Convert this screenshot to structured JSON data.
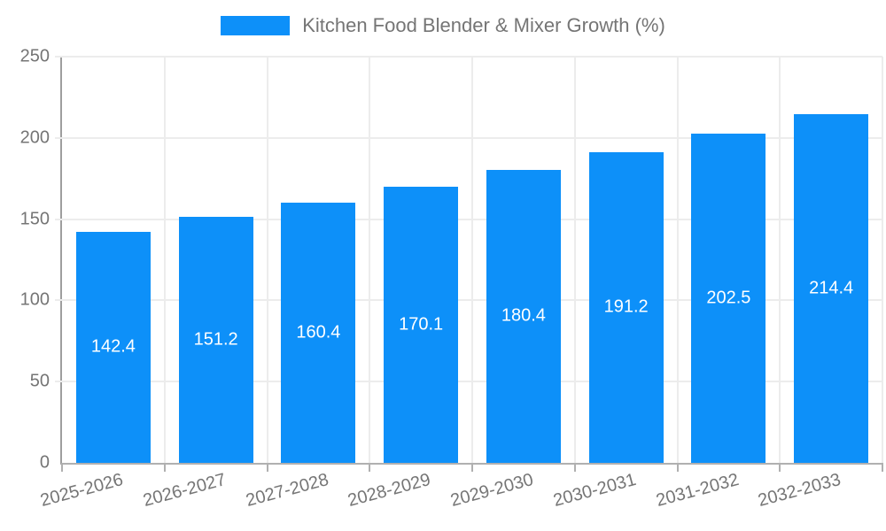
{
  "chart_data": {
    "type": "bar",
    "title": "Kitchen Food Blender & Mixer Growth (%)",
    "legend": {
      "position": "top",
      "entries": [
        "Kitchen Food Blender & Mixer Growth (%)"
      ]
    },
    "categories": [
      "2025-2026",
      "2026-2027",
      "2027-2028",
      "2028-2029",
      "2029-2030",
      "2030-2031",
      "2031-2032",
      "2032-2033"
    ],
    "series": [
      {
        "name": "Kitchen Food Blender & Mixer Growth (%)",
        "values": [
          142.4,
          151.2,
          160.4,
          170.1,
          180.4,
          191.2,
          202.5,
          214.4
        ]
      }
    ],
    "value_labels": [
      "142.4",
      "151.2",
      "160.4",
      "170.1",
      "180.4",
      "191.2",
      "202.5",
      "214.4"
    ],
    "xlabel": "",
    "ylabel": "",
    "ylim": [
      0,
      250
    ],
    "yticks": [
      0,
      50,
      100,
      150,
      200,
      250
    ],
    "grid": true,
    "x_label_rotation_deg": -15,
    "colors": {
      "bar": "#0d90f9",
      "value_label_text": "#ffffff",
      "tick_text": "#757575",
      "legend_text": "#757575",
      "gridline": "#ececec",
      "y_axis_line": "#9e9e9e",
      "x_axis_line": "#b0b0b0",
      "background": "#ffffff"
    }
  }
}
